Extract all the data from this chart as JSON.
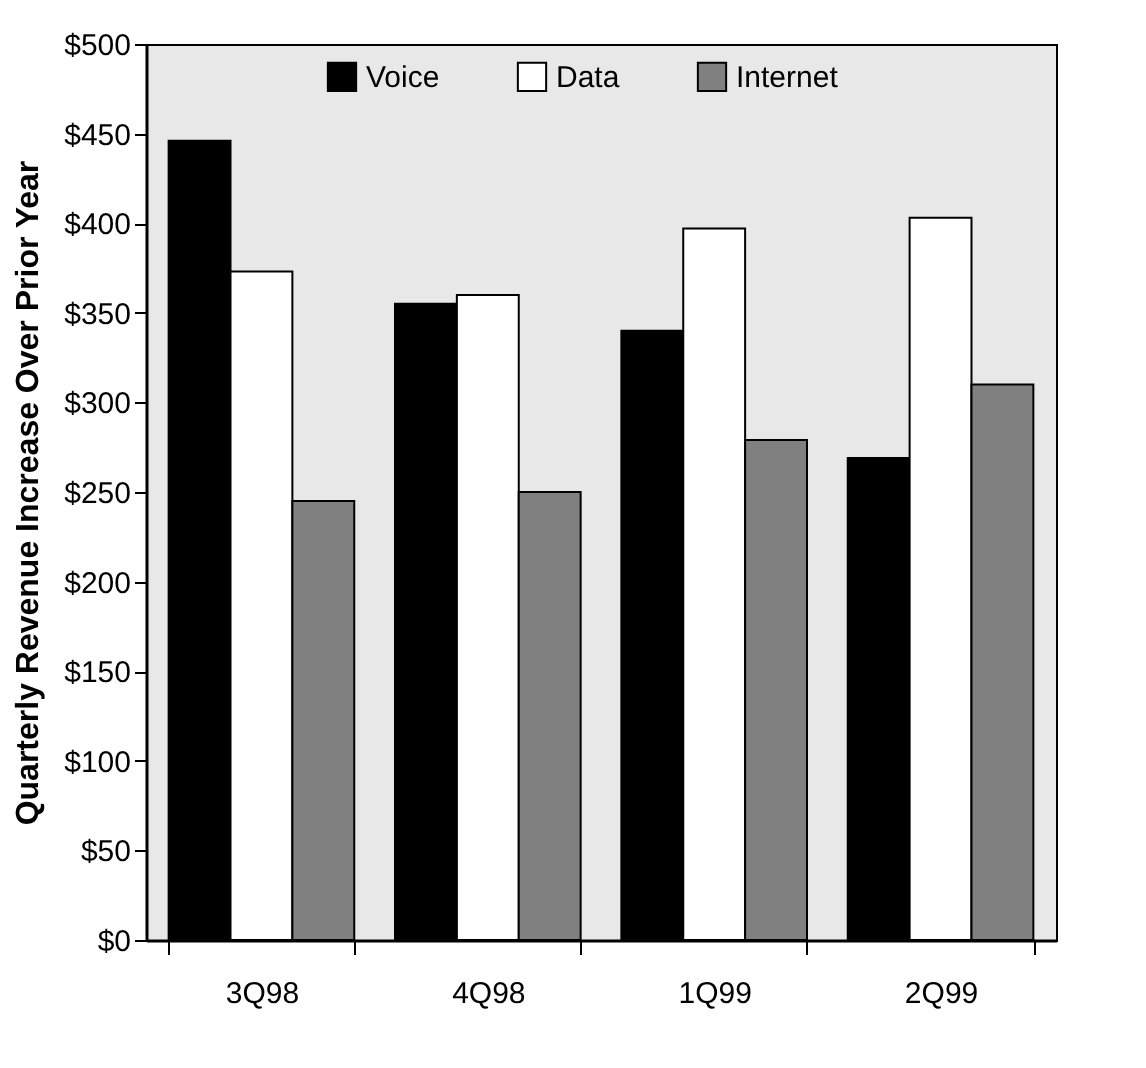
{
  "chart_data": {
    "type": "bar",
    "ylabel": "Quarterly Revenue Increase Over Prior Year",
    "categories": [
      "3Q98",
      "4Q98",
      "1Q99",
      "2Q99"
    ],
    "series": [
      {
        "name": "Voice",
        "color": "#000000",
        "values": [
          446,
          355,
          340,
          269
        ]
      },
      {
        "name": "Data",
        "color": "#ffffff",
        "values": [
          373,
          360,
          397,
          403
        ]
      },
      {
        "name": "Internet",
        "color": "#808080",
        "values": [
          245,
          250,
          279,
          310
        ]
      }
    ],
    "ylim": [
      0,
      500
    ],
    "yticks": [
      {
        "value": 0,
        "label": "$0"
      },
      {
        "value": 50,
        "label": "$50"
      },
      {
        "value": 100,
        "label": "$100"
      },
      {
        "value": 150,
        "label": "$150"
      },
      {
        "value": 200,
        "label": "$200"
      },
      {
        "value": 250,
        "label": "$250"
      },
      {
        "value": 300,
        "label": "$300"
      },
      {
        "value": 350,
        "label": "$350"
      },
      {
        "value": 400,
        "label": "$400"
      },
      {
        "value": 450,
        "label": "$450"
      },
      {
        "value": 500,
        "label": "$500"
      }
    ],
    "grid": false,
    "legend": "top"
  }
}
